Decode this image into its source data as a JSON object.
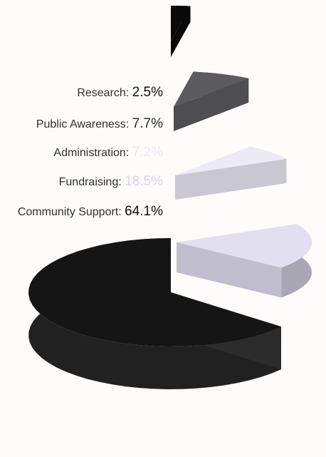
{
  "chart_data": {
    "type": "pie",
    "style": "exploded-3d-stacked",
    "categories": [
      "Research",
      "Public Awareness",
      "Administration",
      "Fundraising",
      "Community Support"
    ],
    "values": [
      2.5,
      7.7,
      7.2,
      18.5,
      64.1
    ],
    "value_labels": [
      "2.5%",
      "7.7%",
      "7.2%",
      "18.5%",
      "64.1%"
    ],
    "colors": [
      "#0a0a0a",
      "#5c5c5e",
      "#eceaf4",
      "#e2dff0",
      "#151515"
    ],
    "label_value_colors": [
      "#101010",
      "#2a2a2a",
      "#ece9f5",
      "#d9d5ea",
      "#101010"
    ],
    "legend": "left"
  }
}
